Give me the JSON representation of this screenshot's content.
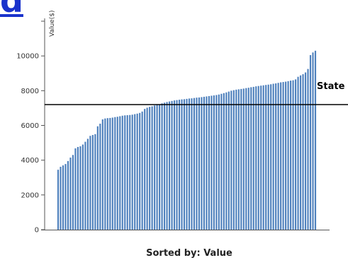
{
  "link_fragment": "d",
  "chart_data": {
    "type": "bar",
    "xlabel": "Sorted by: Value",
    "ylabel": "Value($)",
    "ylim": [
      0,
      12000
    ],
    "yticks": [
      0,
      2000,
      4000,
      6000,
      8000,
      10000,
      12000
    ],
    "ytick_labels": [
      "0",
      "2000",
      "4000",
      "6000",
      "8000",
      "10000",
      ""
    ],
    "bar_color": "#4f81bd",
    "grid": false,
    "reference_line": {
      "label": "State",
      "value": 7200,
      "color": "#000000"
    },
    "values": [
      3450,
      3620,
      3700,
      3780,
      3950,
      4150,
      4300,
      4680,
      4760,
      4800,
      4900,
      5060,
      5230,
      5400,
      5450,
      5500,
      5950,
      6100,
      6350,
      6400,
      6420,
      6430,
      6450,
      6480,
      6500,
      6530,
      6560,
      6580,
      6590,
      6600,
      6620,
      6650,
      6680,
      6720,
      6800,
      6950,
      7020,
      7070,
      7100,
      7150,
      7180,
      7220,
      7270,
      7310,
      7350,
      7380,
      7410,
      7440,
      7460,
      7480,
      7500,
      7510,
      7530,
      7550,
      7560,
      7580,
      7600,
      7610,
      7630,
      7650,
      7670,
      7690,
      7710,
      7730,
      7750,
      7780,
      7820,
      7860,
      7900,
      7950,
      8000,
      8030,
      8060,
      8080,
      8100,
      8120,
      8150,
      8170,
      8200,
      8220,
      8250,
      8270,
      8290,
      8310,
      8330,
      8350,
      8370,
      8400,
      8420,
      8450,
      8480,
      8500,
      8520,
      8550,
      8580,
      8600,
      8650,
      8800,
      8880,
      8950,
      9050,
      9250,
      10050,
      10200,
      10300
    ]
  }
}
